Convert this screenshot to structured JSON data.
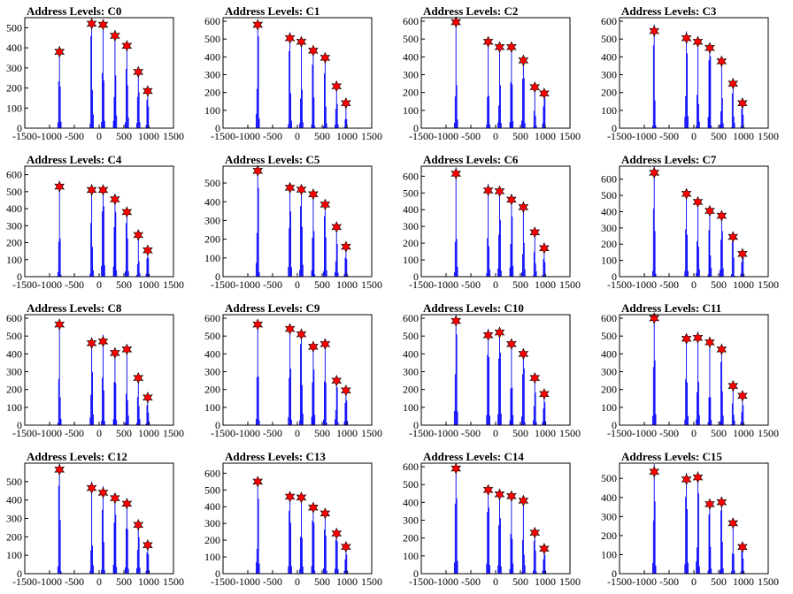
{
  "colors": {
    "histogram": "#0000ff",
    "marker": "#ff0000",
    "marker_edge": "#000000",
    "axis": "#000000",
    "background": "#ffffff"
  },
  "chart_data": [
    {
      "type": "bar",
      "title": "Address Levels: C0",
      "xlim": [
        -1500,
        1500
      ],
      "ylim": [
        0,
        550
      ],
      "xticks": [
        -1500,
        -1000,
        -500,
        0,
        500,
        1000,
        1500
      ],
      "yticks": [
        0,
        100,
        200,
        300,
        400,
        500
      ],
      "peaks": [
        {
          "x": -800,
          "y": 380
        },
        {
          "x": -150,
          "y": 520
        },
        {
          "x": 80,
          "y": 515
        },
        {
          "x": 320,
          "y": 460
        },
        {
          "x": 560,
          "y": 410
        },
        {
          "x": 790,
          "y": 280
        },
        {
          "x": 980,
          "y": 185
        }
      ]
    },
    {
      "type": "bar",
      "title": "Address Levels: C1",
      "xlim": [
        -1500,
        1500
      ],
      "ylim": [
        0,
        620
      ],
      "xticks": [
        -1500,
        -1000,
        -500,
        0,
        500,
        1000,
        1500
      ],
      "yticks": [
        0,
        100,
        200,
        300,
        400,
        500,
        600
      ],
      "peaks": [
        {
          "x": -800,
          "y": 580
        },
        {
          "x": -150,
          "y": 505
        },
        {
          "x": 80,
          "y": 485
        },
        {
          "x": 320,
          "y": 435
        },
        {
          "x": 560,
          "y": 395
        },
        {
          "x": 790,
          "y": 235
        },
        {
          "x": 980,
          "y": 140
        }
      ]
    },
    {
      "type": "bar",
      "title": "Address Levels: C2",
      "xlim": [
        -1500,
        1500
      ],
      "ylim": [
        0,
        620
      ],
      "xticks": [
        -1500,
        -1000,
        -500,
        0,
        500,
        1000,
        1500
      ],
      "yticks": [
        0,
        100,
        200,
        300,
        400,
        500,
        600
      ],
      "peaks": [
        {
          "x": -800,
          "y": 595
        },
        {
          "x": -150,
          "y": 485
        },
        {
          "x": 80,
          "y": 455
        },
        {
          "x": 320,
          "y": 455
        },
        {
          "x": 560,
          "y": 380
        },
        {
          "x": 790,
          "y": 230
        },
        {
          "x": 980,
          "y": 195
        }
      ]
    },
    {
      "type": "bar",
      "title": "Address Levels: C3",
      "xlim": [
        -1500,
        1500
      ],
      "ylim": [
        0,
        620
      ],
      "xticks": [
        -1500,
        -1000,
        -500,
        0,
        500,
        1000,
        1500
      ],
      "yticks": [
        0,
        100,
        200,
        300,
        400,
        500,
        600
      ],
      "peaks": [
        {
          "x": -800,
          "y": 545
        },
        {
          "x": -150,
          "y": 505
        },
        {
          "x": 80,
          "y": 485
        },
        {
          "x": 320,
          "y": 450
        },
        {
          "x": 560,
          "y": 375
        },
        {
          "x": 790,
          "y": 250
        },
        {
          "x": 980,
          "y": 140
        }
      ]
    },
    {
      "type": "bar",
      "title": "Address Levels: C4",
      "xlim": [
        -1500,
        1500
      ],
      "ylim": [
        0,
        650
      ],
      "xticks": [
        -1500,
        -1000,
        -500,
        0,
        500,
        1000,
        1500
      ],
      "yticks": [
        0,
        100,
        200,
        300,
        400,
        500,
        600
      ],
      "peaks": [
        {
          "x": -800,
          "y": 530
        },
        {
          "x": -150,
          "y": 510
        },
        {
          "x": 80,
          "y": 510
        },
        {
          "x": 320,
          "y": 455
        },
        {
          "x": 560,
          "y": 380
        },
        {
          "x": 790,
          "y": 245
        },
        {
          "x": 980,
          "y": 155
        }
      ]
    },
    {
      "type": "bar",
      "title": "Address Levels: C5",
      "xlim": [
        -1500,
        1500
      ],
      "ylim": [
        0,
        590
      ],
      "xticks": [
        -1500,
        -1000,
        -500,
        0,
        500,
        1000,
        1500
      ],
      "yticks": [
        0,
        100,
        200,
        300,
        400,
        500
      ],
      "peaks": [
        {
          "x": -800,
          "y": 565
        },
        {
          "x": -150,
          "y": 475
        },
        {
          "x": 80,
          "y": 465
        },
        {
          "x": 320,
          "y": 440
        },
        {
          "x": 560,
          "y": 385
        },
        {
          "x": 790,
          "y": 265
        },
        {
          "x": 980,
          "y": 160
        }
      ]
    },
    {
      "type": "bar",
      "title": "Address Levels: C6",
      "xlim": [
        -1500,
        1500
      ],
      "ylim": [
        0,
        660
      ],
      "xticks": [
        -1500,
        -1000,
        -500,
        0,
        500,
        1000,
        1500
      ],
      "yticks": [
        0,
        100,
        200,
        300,
        400,
        500,
        600
      ],
      "peaks": [
        {
          "x": -800,
          "y": 615
        },
        {
          "x": -150,
          "y": 515
        },
        {
          "x": 80,
          "y": 510
        },
        {
          "x": 320,
          "y": 460
        },
        {
          "x": 560,
          "y": 415
        },
        {
          "x": 790,
          "y": 265
        },
        {
          "x": 980,
          "y": 170
        }
      ]
    },
    {
      "type": "bar",
      "title": "Address Levels: C7",
      "xlim": [
        -1500,
        1500
      ],
      "ylim": [
        0,
        680
      ],
      "xticks": [
        -1500,
        -1000,
        -500,
        0,
        500,
        1000,
        1500
      ],
      "yticks": [
        0,
        100,
        200,
        300,
        400,
        500,
        600
      ],
      "peaks": [
        {
          "x": -800,
          "y": 640
        },
        {
          "x": -150,
          "y": 510
        },
        {
          "x": 80,
          "y": 460
        },
        {
          "x": 320,
          "y": 405
        },
        {
          "x": 560,
          "y": 375
        },
        {
          "x": 790,
          "y": 245
        },
        {
          "x": 980,
          "y": 140
        }
      ]
    },
    {
      "type": "bar",
      "title": "Address Levels: C8",
      "xlim": [
        -1500,
        1500
      ],
      "ylim": [
        0,
        620
      ],
      "xticks": [
        -1500,
        -1000,
        -500,
        0,
        500,
        1000,
        1500
      ],
      "yticks": [
        0,
        100,
        200,
        300,
        400,
        500,
        600
      ],
      "peaks": [
        {
          "x": -800,
          "y": 565
        },
        {
          "x": -150,
          "y": 460
        },
        {
          "x": 80,
          "y": 470
        },
        {
          "x": 320,
          "y": 405
        },
        {
          "x": 560,
          "y": 425
        },
        {
          "x": 790,
          "y": 265
        },
        {
          "x": 980,
          "y": 155
        }
      ]
    },
    {
      "type": "bar",
      "title": "Address Levels: C9",
      "xlim": [
        -1500,
        1500
      ],
      "ylim": [
        0,
        620
      ],
      "xticks": [
        -1500,
        -1000,
        -500,
        0,
        500,
        1000,
        1500
      ],
      "yticks": [
        0,
        100,
        200,
        300,
        400,
        500,
        600
      ],
      "peaks": [
        {
          "x": -800,
          "y": 565
        },
        {
          "x": -150,
          "y": 540
        },
        {
          "x": 80,
          "y": 510
        },
        {
          "x": 320,
          "y": 440
        },
        {
          "x": 560,
          "y": 455
        },
        {
          "x": 790,
          "y": 250
        },
        {
          "x": 980,
          "y": 195
        }
      ]
    },
    {
      "type": "bar",
      "title": "Address Levels: C10",
      "xlim": [
        -1500,
        1500
      ],
      "ylim": [
        0,
        620
      ],
      "xticks": [
        -1500,
        -1000,
        -500,
        0,
        500,
        1000,
        1500
      ],
      "yticks": [
        0,
        100,
        200,
        300,
        400,
        500,
        600
      ],
      "peaks": [
        {
          "x": -800,
          "y": 585
        },
        {
          "x": -150,
          "y": 505
        },
        {
          "x": 80,
          "y": 520
        },
        {
          "x": 320,
          "y": 455
        },
        {
          "x": 560,
          "y": 400
        },
        {
          "x": 790,
          "y": 265
        },
        {
          "x": 980,
          "y": 175
        }
      ]
    },
    {
      "type": "bar",
      "title": "Address Levels: C11",
      "xlim": [
        -1500,
        1500
      ],
      "ylim": [
        0,
        620
      ],
      "xticks": [
        -1500,
        -1000,
        -500,
        0,
        500,
        1000,
        1500
      ],
      "yticks": [
        0,
        100,
        200,
        300,
        400,
        500,
        600
      ],
      "peaks": [
        {
          "x": -800,
          "y": 600
        },
        {
          "x": -150,
          "y": 485
        },
        {
          "x": 80,
          "y": 490
        },
        {
          "x": 320,
          "y": 465
        },
        {
          "x": 560,
          "y": 425
        },
        {
          "x": 790,
          "y": 220
        },
        {
          "x": 980,
          "y": 165
        }
      ]
    },
    {
      "type": "bar",
      "title": "Address Levels: C12",
      "xlim": [
        -1500,
        1500
      ],
      "ylim": [
        0,
        600
      ],
      "xticks": [
        -1500,
        -1000,
        -500,
        0,
        500,
        1000,
        1500
      ],
      "yticks": [
        0,
        100,
        200,
        300,
        400,
        500
      ],
      "peaks": [
        {
          "x": -800,
          "y": 565
        },
        {
          "x": -150,
          "y": 465
        },
        {
          "x": 80,
          "y": 440
        },
        {
          "x": 320,
          "y": 410
        },
        {
          "x": 560,
          "y": 380
        },
        {
          "x": 790,
          "y": 265
        },
        {
          "x": 980,
          "y": 155
        }
      ]
    },
    {
      "type": "bar",
      "title": "Address Levels: C13",
      "xlim": [
        -1500,
        1500
      ],
      "ylim": [
        0,
        660
      ],
      "xticks": [
        -1500,
        -1000,
        -500,
        0,
        500,
        1000,
        1500
      ],
      "yticks": [
        0,
        100,
        200,
        300,
        400,
        500,
        600
      ],
      "peaks": [
        {
          "x": -800,
          "y": 550
        },
        {
          "x": -150,
          "y": 460
        },
        {
          "x": 80,
          "y": 455
        },
        {
          "x": 320,
          "y": 395
        },
        {
          "x": 560,
          "y": 360
        },
        {
          "x": 790,
          "y": 240
        },
        {
          "x": 980,
          "y": 160
        }
      ]
    },
    {
      "type": "bar",
      "title": "Address Levels: C14",
      "xlim": [
        -1500,
        1500
      ],
      "ylim": [
        0,
        620
      ],
      "xticks": [
        -1500,
        -1000,
        -500,
        0,
        500,
        1000,
        1500
      ],
      "yticks": [
        0,
        100,
        200,
        300,
        400,
        500,
        600
      ],
      "peaks": [
        {
          "x": -800,
          "y": 590
        },
        {
          "x": -150,
          "y": 470
        },
        {
          "x": 80,
          "y": 445
        },
        {
          "x": 320,
          "y": 435
        },
        {
          "x": 560,
          "y": 410
        },
        {
          "x": 790,
          "y": 230
        },
        {
          "x": 980,
          "y": 140
        }
      ]
    },
    {
      "type": "bar",
      "title": "Address Levels: C15",
      "xlim": [
        -1500,
        1500
      ],
      "ylim": [
        0,
        580
      ],
      "xticks": [
        -1500,
        -1000,
        -500,
        0,
        500,
        1000,
        1500
      ],
      "yticks": [
        0,
        100,
        200,
        300,
        400,
        500
      ],
      "peaks": [
        {
          "x": -800,
          "y": 535
        },
        {
          "x": -150,
          "y": 495
        },
        {
          "x": 80,
          "y": 505
        },
        {
          "x": 320,
          "y": 365
        },
        {
          "x": 560,
          "y": 375
        },
        {
          "x": 790,
          "y": 265
        },
        {
          "x": 980,
          "y": 140
        }
      ]
    }
  ]
}
